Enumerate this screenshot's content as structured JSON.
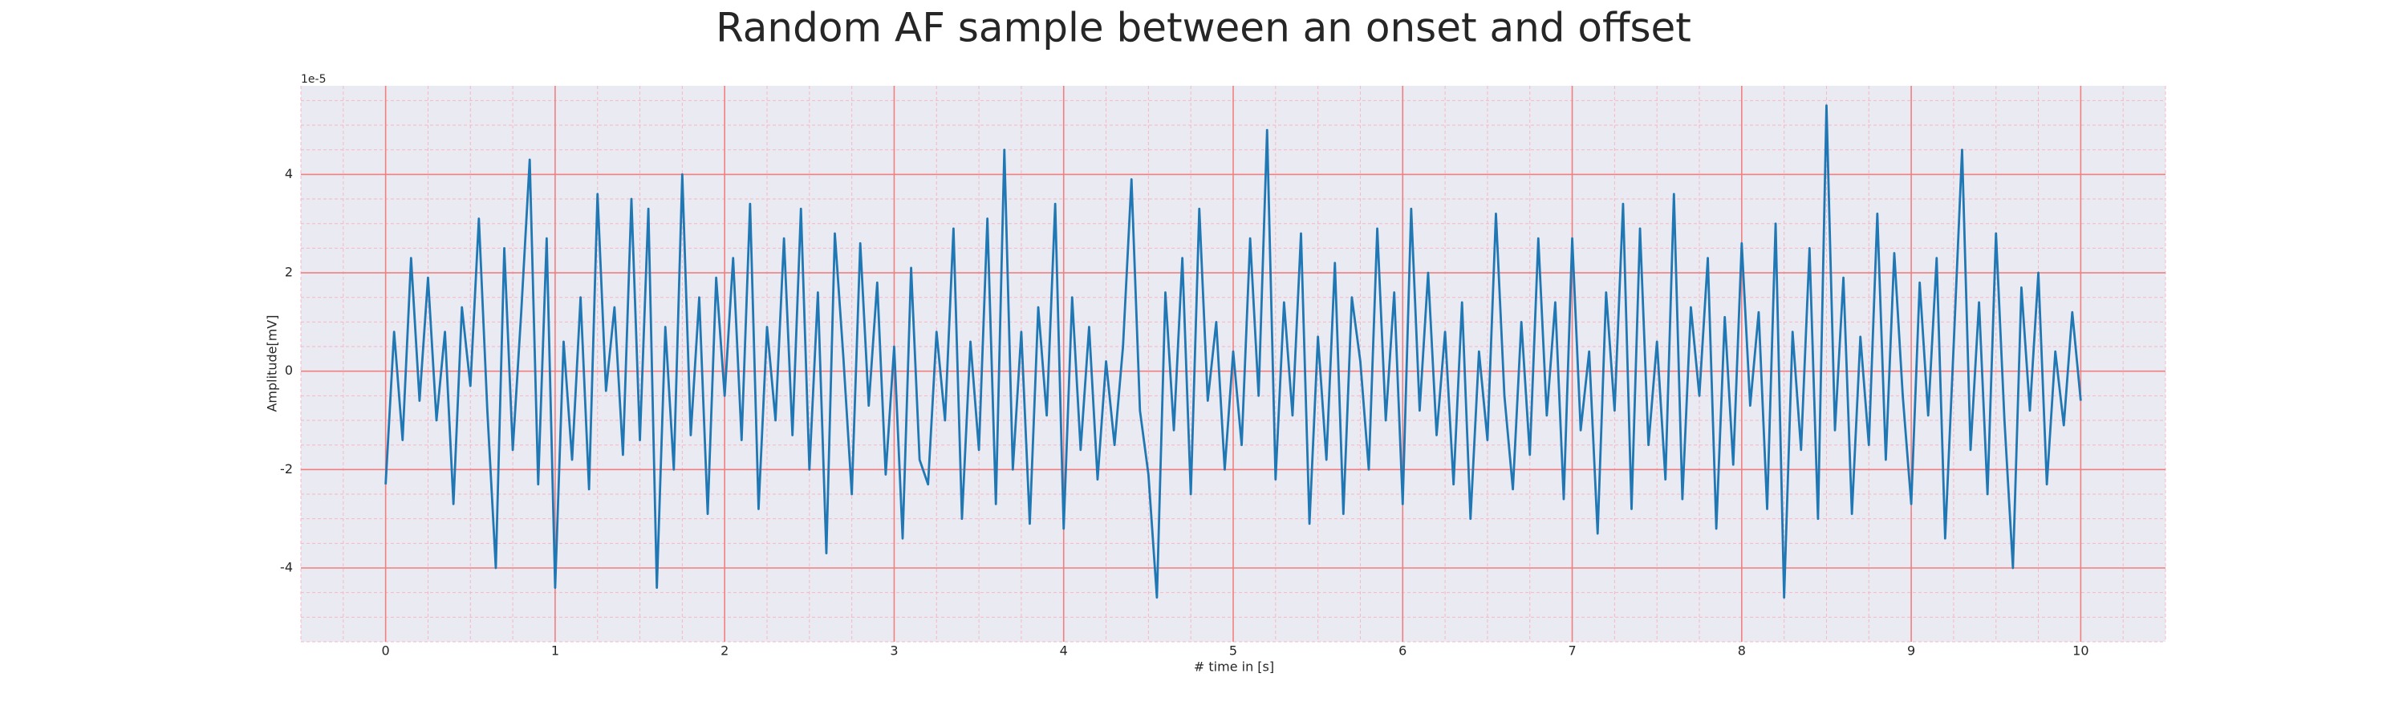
{
  "chart_data": {
    "type": "line",
    "title": "Random AF sample between an onset and offset",
    "xlabel": "# time in [s]",
    "ylabel": "Amplitude[mV]",
    "y_offset_label": "1e-5",
    "color": "#1f77b4",
    "background": "#eaeaf2",
    "grid": true,
    "grid_color": "#f08080",
    "minor_grid": true,
    "minor_grid_color": "#f5b8c4",
    "xlim": [
      -0.5,
      10.5
    ],
    "ylim": [
      -5.5,
      5.8
    ],
    "xticks": [
      0,
      1,
      2,
      3,
      4,
      5,
      6,
      7,
      8,
      9,
      10
    ],
    "yticks": [
      -4,
      -2,
      0,
      2,
      4
    ],
    "xminorticks": [
      -0.5,
      -0.25,
      0,
      0.25,
      0.5,
      0.75,
      1,
      1.25,
      1.5,
      1.75,
      2,
      2.25,
      2.5,
      2.75,
      3,
      3.25,
      3.5,
      3.75,
      4,
      4.25,
      4.5,
      4.75,
      5,
      5.25,
      5.5,
      5.75,
      6,
      6.25,
      6.5,
      6.75,
      7,
      7.25,
      7.5,
      7.75,
      8,
      8.25,
      8.5,
      8.75,
      9,
      9.25,
      9.5,
      9.75,
      10,
      10.25,
      10.5
    ],
    "yminorticks": [
      -5.5,
      -5,
      -4.5,
      -4,
      -3.5,
      -3,
      -2.5,
      -2,
      -1.5,
      -1,
      -0.5,
      0,
      0.5,
      1,
      1.5,
      2,
      2.5,
      3,
      3.5,
      4,
      4.5,
      5,
      5.5
    ],
    "x": [
      0,
      0.05,
      0.1,
      0.15,
      0.2,
      0.25,
      0.3,
      0.35,
      0.4,
      0.45,
      0.5,
      0.55,
      0.6,
      0.65,
      0.7,
      0.75,
      0.8,
      0.85,
      0.9,
      0.95,
      1,
      1.05,
      1.1,
      1.15,
      1.2,
      1.25,
      1.3,
      1.35,
      1.4,
      1.45,
      1.5,
      1.55,
      1.6,
      1.65,
      1.7,
      1.75,
      1.8,
      1.85,
      1.9,
      1.95,
      2,
      2.05,
      2.1,
      2.15,
      2.2,
      2.25,
      2.3,
      2.35,
      2.4,
      2.45,
      2.5,
      2.55,
      2.6,
      2.65,
      2.7,
      2.75,
      2.8,
      2.85,
      2.9,
      2.95,
      3,
      3.05,
      3.1,
      3.15,
      3.2,
      3.25,
      3.3,
      3.35,
      3.4,
      3.45,
      3.5,
      3.55,
      3.6,
      3.65,
      3.7,
      3.75,
      3.8,
      3.85,
      3.9,
      3.95,
      4,
      4.05,
      4.1,
      4.15,
      4.2,
      4.25,
      4.3,
      4.35,
      4.4,
      4.45,
      4.5,
      4.55,
      4.6,
      4.65,
      4.7,
      4.75,
      4.8,
      4.85,
      4.9,
      4.95,
      5,
      5.05,
      5.1,
      5.15,
      5.2,
      5.25,
      5.3,
      5.35,
      5.4,
      5.45,
      5.5,
      5.55,
      5.6,
      5.65,
      5.7,
      5.75,
      5.8,
      5.85,
      5.9,
      5.95,
      6,
      6.05,
      6.1,
      6.15,
      6.2,
      6.25,
      6.3,
      6.35,
      6.4,
      6.45,
      6.5,
      6.55,
      6.6,
      6.65,
      6.7,
      6.75,
      6.8,
      6.85,
      6.9,
      6.95,
      7,
      7.05,
      7.1,
      7.15,
      7.2,
      7.25,
      7.3,
      7.35,
      7.4,
      7.45,
      7.5,
      7.55,
      7.6,
      7.65,
      7.7,
      7.75,
      7.8,
      7.85,
      7.9,
      7.95,
      8,
      8.05,
      8.1,
      8.15,
      8.2,
      8.25,
      8.3,
      8.35,
      8.4,
      8.45,
      8.5,
      8.55,
      8.6,
      8.65,
      8.7,
      8.75,
      8.8,
      8.85,
      8.9,
      8.95,
      9,
      9.05,
      9.1,
      9.15,
      9.2,
      9.25,
      9.3,
      9.35,
      9.4,
      9.45,
      9.5,
      9.55,
      9.6,
      9.65,
      9.7,
      9.75,
      9.8,
      9.85,
      9.9,
      9.95,
      10
    ],
    "values": [
      -2.3,
      0.8,
      -1.4,
      2.3,
      -0.6,
      1.9,
      -1.0,
      0.8,
      -2.7,
      1.3,
      -0.3,
      3.1,
      -0.8,
      -4.0,
      2.5,
      -1.6,
      1.2,
      4.3,
      -2.3,
      2.7,
      -4.4,
      0.6,
      -1.8,
      1.5,
      -2.4,
      3.6,
      -0.4,
      1.3,
      -1.7,
      3.5,
      -1.4,
      3.3,
      -4.4,
      0.9,
      -2.0,
      4.0,
      -1.3,
      1.5,
      -2.9,
      1.9,
      -0.5,
      2.3,
      -1.4,
      3.4,
      -2.8,
      0.9,
      -1.0,
      2.7,
      -1.3,
      3.3,
      -2.0,
      1.6,
      -3.7,
      2.8,
      0.3,
      -2.5,
      2.6,
      -0.7,
      1.8,
      -2.1,
      0.5,
      -3.4,
      2.1,
      -1.8,
      -2.3,
      0.8,
      -1.0,
      2.9,
      -3.0,
      0.6,
      -1.6,
      3.1,
      -2.7,
      4.5,
      -2.0,
      0.8,
      -3.1,
      1.3,
      -0.9,
      3.4,
      -3.2,
      1.5,
      -1.6,
      0.9,
      -2.2,
      0.2,
      -1.5,
      0.5,
      3.9,
      -0.8,
      -2.1,
      -4.6,
      1.6,
      -1.2,
      2.3,
      -2.5,
      3.3,
      -0.6,
      1.0,
      -2.0,
      0.4,
      -1.5,
      2.7,
      -0.5,
      4.9,
      -2.2,
      1.4,
      -0.9,
      2.8,
      -3.1,
      0.7,
      -1.8,
      2.2,
      -2.9,
      1.5,
      0.2,
      -2.0,
      2.9,
      -1.0,
      1.6,
      -2.7,
      3.3,
      -0.8,
      2.0,
      -1.3,
      0.8,
      -2.3,
      1.4,
      -3.0,
      0.4,
      -1.4,
      3.2,
      -0.5,
      -2.4,
      1.0,
      -1.7,
      2.7,
      -0.9,
      1.4,
      -2.6,
      2.7,
      -1.2,
      0.4,
      -3.3,
      1.6,
      -0.8,
      3.4,
      -2.8,
      2.9,
      -1.5,
      0.6,
      -2.2,
      3.6,
      -2.6,
      1.3,
      -0.5,
      2.3,
      -3.2,
      1.1,
      -1.9,
      2.6,
      -0.7,
      1.2,
      -2.8,
      3.0,
      -4.6,
      0.8,
      -1.6,
      2.5,
      -3.0,
      5.4,
      -1.2,
      1.9,
      -2.9,
      0.7,
      -1.5,
      3.2,
      -1.8,
      2.4,
      -0.5,
      -2.7,
      1.8,
      -0.9,
      2.3,
      -3.4,
      0.5,
      4.5,
      -1.6,
      1.4,
      -2.5,
      2.8,
      -1.0,
      -4.0,
      1.7,
      -0.8,
      2.0,
      -2.3,
      0.4,
      -1.1,
      1.2,
      -0.6
    ]
  }
}
